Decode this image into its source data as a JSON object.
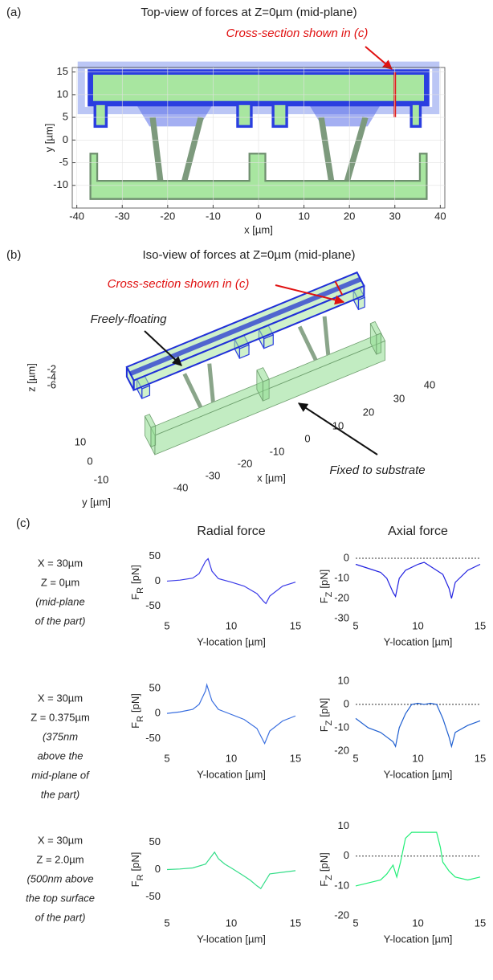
{
  "figure": {
    "panel_labels": [
      "(a)",
      "(b)",
      "(c)"
    ],
    "row_descriptions": [
      [
        "X = 30µm",
        "Z = 0µm",
        "(mid-plane",
        "of the part)"
      ],
      [
        "X = 30µm",
        "Z = 0.375µm",
        "(375nm",
        "above the",
        "mid-plane of",
        "the part)"
      ],
      [
        "X = 30µm",
        "Z = 2.0µm",
        "(500nm above",
        "the top surface",
        "of the part)"
      ]
    ]
  },
  "panel_b": {
    "title": "Iso-view of forces at Z=0µm (mid-plane)",
    "annotation_cross_section": "Cross-section shown in (c)",
    "annotation_floating": "Freely-floating",
    "annotation_fixed": "Fixed to substrate",
    "xlabel": "x [µm]",
    "ylabel": "y [µm]",
    "zlabel": "z [µm]",
    "xticks": [
      -40,
      -30,
      -20,
      -10,
      0,
      10,
      20,
      30,
      40
    ],
    "yticks": [
      10,
      0,
      -10
    ],
    "zticks": [
      -2,
      -4,
      -6
    ]
  },
  "chart_data": [
    {
      "type": "field",
      "title": "Top-view of forces at Z=0µm (mid-plane)",
      "annotation": "Cross-section shown in (c)",
      "xlabel": "x [µm]",
      "ylabel": "y [µm]",
      "xlim": [
        -41,
        41
      ],
      "ylim": [
        -15,
        16
      ],
      "xticks": [
        -40,
        -30,
        -20,
        -10,
        0,
        10,
        20,
        30,
        40
      ],
      "yticks": [
        -10,
        -5,
        0,
        5,
        10,
        15
      ],
      "grid": true
    },
    {
      "type": "line",
      "title": "Radial force",
      "xlabel": "Y-location [µm]",
      "ylabel": {
        "main": "F",
        "sub": "R",
        "unit": "[pN]"
      },
      "x": [
        5,
        6,
        7,
        7.5,
        8,
        8.2,
        8.5,
        9,
        10,
        11,
        12,
        12.5,
        12.7,
        13,
        14,
        15
      ],
      "values": [
        0,
        2,
        6,
        15,
        40,
        45,
        20,
        5,
        -2,
        -10,
        -25,
        -40,
        -45,
        -30,
        -10,
        -2
      ],
      "color": "#3a3ae8",
      "xlim": [
        5,
        15
      ],
      "ylim": [
        -75,
        70
      ],
      "xticks": [
        5,
        10,
        15
      ],
      "yticks": [
        50,
        0,
        -50
      ]
    },
    {
      "type": "line",
      "title": "Axial force",
      "xlabel": "Y-location [µm]",
      "ylabel": {
        "main": "F",
        "sub": "Z",
        "unit": "[pN]"
      },
      "x": [
        5,
        6,
        7,
        7.5,
        8,
        8.2,
        8.5,
        9,
        10,
        10.5,
        11,
        12,
        12.5,
        12.7,
        13,
        14,
        15
      ],
      "values": [
        -3,
        -5,
        -7,
        -10,
        -17,
        -19,
        -10,
        -6,
        -3,
        -2,
        -4,
        -8,
        -15,
        -20,
        -12,
        -6,
        -3
      ],
      "color": "#2020e0",
      "xlim": [
        5,
        15
      ],
      "ylim": [
        -30,
        2
      ],
      "xticks": [
        5,
        10,
        15
      ],
      "yticks": [
        0,
        -10,
        -20,
        -30
      ],
      "reference_line": 0
    },
    {
      "type": "line",
      "xlabel": "Y-location [µm]",
      "ylabel": {
        "main": "F",
        "sub": "R",
        "unit": "[pN]"
      },
      "x": [
        5,
        6,
        7,
        7.5,
        8,
        8.1,
        8.5,
        9,
        10,
        11,
        12,
        12.4,
        12.6,
        13,
        14,
        15
      ],
      "values": [
        0,
        3,
        8,
        18,
        45,
        57,
        25,
        8,
        -2,
        -12,
        -30,
        -50,
        -60,
        -35,
        -15,
        -5
      ],
      "color": "#3a6fe0",
      "xlim": [
        5,
        15
      ],
      "ylim": [
        -75,
        85
      ],
      "xticks": [
        5,
        10,
        15
      ],
      "yticks": [
        50,
        0,
        -50
      ]
    },
    {
      "type": "line",
      "xlabel": "Y-location [µm]",
      "ylabel": {
        "main": "F",
        "sub": "Z",
        "unit": "[pN]"
      },
      "x": [
        5,
        6,
        7,
        7.5,
        8,
        8.2,
        8.5,
        9,
        9.5,
        10,
        10.5,
        11,
        11.5,
        12,
        12.5,
        12.7,
        13,
        14,
        15
      ],
      "values": [
        -6,
        -10,
        -12,
        -14,
        -16,
        -18,
        -10,
        -4,
        0,
        0.5,
        0,
        0.5,
        0,
        -6,
        -14,
        -18,
        -12,
        -9,
        -7
      ],
      "color": "#1f5fd0",
      "xlim": [
        5,
        15
      ],
      "ylim": [
        -20,
        11
      ],
      "xticks": [
        5,
        10,
        15
      ],
      "yticks": [
        10,
        0,
        -10,
        -20
      ],
      "reference_line": 0
    },
    {
      "type": "line",
      "xlabel": "Y-location [µm]",
      "ylabel": {
        "main": "F",
        "sub": "R",
        "unit": "[pN]"
      },
      "x": [
        5,
        6,
        7,
        8,
        8.7,
        9,
        9.5,
        10,
        11,
        11.5,
        12,
        12.3,
        13,
        14,
        15
      ],
      "values": [
        0,
        1,
        3,
        10,
        32,
        20,
        10,
        3,
        -12,
        -20,
        -30,
        -35,
        -8,
        -5,
        -2
      ],
      "color": "#33dd88",
      "xlim": [
        5,
        15
      ],
      "ylim": [
        -85,
        85
      ],
      "xticks": [
        5,
        10,
        15
      ],
      "yticks": [
        50,
        0,
        -50
      ]
    },
    {
      "type": "line",
      "xlabel": "Y-location [µm]",
      "ylabel": {
        "main": "F",
        "sub": "Z",
        "unit": "[pN]"
      },
      "x": [
        5,
        6,
        7,
        7.5,
        8,
        8.3,
        8.6,
        9,
        9.5,
        10,
        11,
        11.5,
        11.8,
        12,
        12.5,
        13,
        14,
        15
      ],
      "values": [
        -10,
        -9,
        -8,
        -6,
        -3,
        -7,
        -2,
        6,
        8,
        8,
        8,
        8,
        3,
        -2,
        -5,
        -7,
        -8,
        -7
      ],
      "color": "#22ee77",
      "xlim": [
        5,
        15
      ],
      "ylim": [
        -20,
        11
      ],
      "xticks": [
        5,
        10,
        15
      ],
      "yticks": [
        10,
        0,
        -10,
        -20
      ],
      "reference_line": 0
    }
  ]
}
